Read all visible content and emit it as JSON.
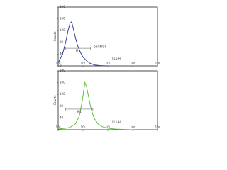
{
  "chart_data": [
    {
      "type": "line",
      "x_label": "FL1-H",
      "y_label": "Counts",
      "xscale": "log",
      "xlim": [
        1,
        10000
      ],
      "xticks": [
        {
          "value": 1,
          "label": "10⁰"
        },
        {
          "value": 10,
          "label": "10¹"
        },
        {
          "value": 100,
          "label": "10²"
        },
        {
          "value": 1000,
          "label": "10³"
        },
        {
          "value": 10000,
          "label": "10⁴"
        }
      ],
      "ylim": [
        0,
        200
      ],
      "yticks": [
        0,
        40,
        80,
        120,
        160,
        200
      ],
      "x": [
        1,
        1.5,
        2,
        2.5,
        3,
        3.5,
        4,
        5,
        6,
        8,
        10,
        15,
        20,
        30,
        50,
        100
      ],
      "series": [
        {
          "name": "control",
          "color": "#2f3fa0",
          "values": [
            10,
            40,
            80,
            120,
            145,
            150,
            130,
            95,
            70,
            45,
            30,
            15,
            8,
            3,
            1,
            0
          ]
        }
      ],
      "marker": {
        "label": "M1",
        "range": [
          2,
          20
        ],
        "level": 60
      }
    },
    {
      "type": "line",
      "x_label": "FL1-H",
      "y_label": "Counts",
      "xscale": "log",
      "xlim": [
        1,
        10000
      ],
      "xticks": [
        {
          "value": 1,
          "label": "10⁰"
        },
        {
          "value": 10,
          "label": "10¹"
        },
        {
          "value": 100,
          "label": "10²"
        },
        {
          "value": 1000,
          "label": "10³"
        },
        {
          "value": 10000,
          "label": "10⁴"
        }
      ],
      "ylim": [
        0,
        200
      ],
      "yticks": [
        0,
        40,
        80,
        120,
        160,
        200
      ],
      "x": [
        1,
        2,
        3,
        5,
        7,
        9,
        11,
        12,
        14,
        17,
        20,
        25,
        30,
        40,
        60,
        100,
        200,
        500,
        1000
      ],
      "series": [
        {
          "color": "#5cc03a",
          "values": [
            2,
            5,
            8,
            20,
            45,
            90,
            140,
            160,
            145,
            110,
            80,
            50,
            35,
            20,
            10,
            5,
            2,
            1,
            0
          ]
        }
      ],
      "marker": {
        "label": "M1",
        "range": [
          2,
          25
        ],
        "level": 70
      }
    }
  ]
}
